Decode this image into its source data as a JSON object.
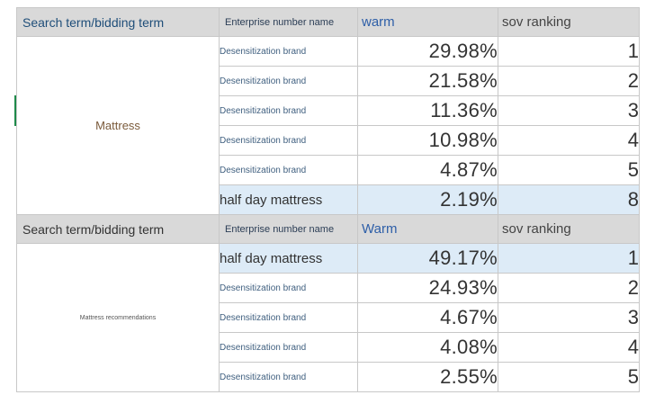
{
  "group1": {
    "header": {
      "term": "Search term/bidding term",
      "enterprise": "Enterprise number name",
      "warm": "warm",
      "sov": "sov ranking"
    },
    "term": "Mattress",
    "rows": [
      {
        "brand": "Desensitization brand",
        "warm": "29.98%",
        "rank": "1"
      },
      {
        "brand": "Desensitization brand",
        "warm": "21.58%",
        "rank": "2"
      },
      {
        "brand": "Desensitization brand",
        "warm": "11.36%",
        "rank": "3"
      },
      {
        "brand": "Desensitization brand",
        "warm": "10.98%",
        "rank": "4"
      },
      {
        "brand": "Desensitization brand",
        "warm": "4.87%",
        "rank": "5"
      },
      {
        "brand": "half day mattress",
        "warm": "2.19%",
        "rank": "8"
      }
    ]
  },
  "group2": {
    "header": {
      "term": "Search term/bidding term",
      "enterprise": "Enterprise number name",
      "warm": "Warm",
      "sov": "sov ranking"
    },
    "term": "Mattress recommendations",
    "rows": [
      {
        "brand": "half day mattress",
        "warm": "49.17%",
        "rank": "1"
      },
      {
        "brand": "Desensitization brand",
        "warm": "24.93%",
        "rank": "2"
      },
      {
        "brand": "Desensitization brand",
        "warm": "4.67%",
        "rank": "3"
      },
      {
        "brand": "Desensitization brand",
        "warm": "4.08%",
        "rank": "4"
      },
      {
        "brand": "Desensitization brand",
        "warm": "2.55%",
        "rank": "5"
      }
    ]
  },
  "colors": {
    "header_bg": "#d9d9d9",
    "highlight_bg": "#ddebf7",
    "grid": "#c8c8c8"
  }
}
